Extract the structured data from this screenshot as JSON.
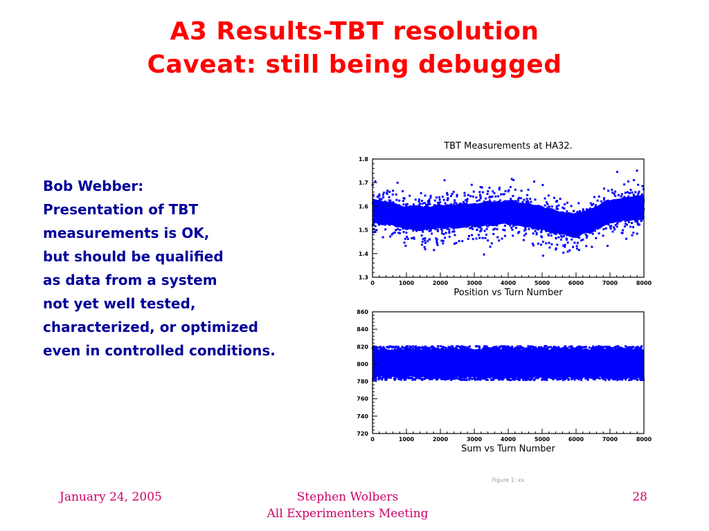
{
  "slide": {
    "title_line1": "A3 Results-TBT resolution",
    "title_line2": "Caveat: still being debugged",
    "body_lines": [
      "Bob Webber:",
      "Presentation of TBT",
      "measurements is OK,",
      "but should be qualified",
      "as data from a system",
      "not yet well tested,",
      "characterized, or optimized",
      "even in controlled conditions."
    ],
    "footer_date": "January 24, 2005",
    "footer_author": "Stephen Wolbers",
    "footer_meeting": "All Experimenters Meeting",
    "page_number": "28"
  },
  "figure": {
    "title": "TBT Measurements at HA32.",
    "caption": "Figure 1: xx"
  },
  "colors": {
    "title": "#ff0000",
    "body": "#000099",
    "footer": "#cc0066",
    "data": "#0000ff"
  },
  "chart_data": [
    {
      "type": "scatter",
      "title": "TBT Measurements at HA32.",
      "xlabel": "Position vs Turn Number",
      "ylabel": "",
      "xlim": [
        0,
        8000
      ],
      "ylim": [
        1.3,
        1.8
      ],
      "x_ticks": [
        0,
        1000,
        2000,
        3000,
        4000,
        5000,
        6000,
        7000,
        8000
      ],
      "x_tick_labels": [
        "0",
        "1000",
        "2000",
        "3000",
        "4000",
        "5000",
        "6000",
        "7000",
        "8000"
      ],
      "y_ticks": [
        1.3,
        1.4,
        1.5,
        1.6,
        1.7,
        1.8
      ],
      "y_tick_labels": [
        "1.3",
        "1.4",
        "1.5",
        "1.6",
        "1.7",
        "1.8"
      ],
      "band_center": [
        [
          0,
          1.58
        ],
        [
          500,
          1.57
        ],
        [
          1000,
          1.55
        ],
        [
          1500,
          1.55
        ],
        [
          2000,
          1.555
        ],
        [
          2500,
          1.56
        ],
        [
          3000,
          1.565
        ],
        [
          3500,
          1.57
        ],
        [
          4000,
          1.575
        ],
        [
          4500,
          1.565
        ],
        [
          5000,
          1.55
        ],
        [
          5500,
          1.53
        ],
        [
          6000,
          1.52
        ],
        [
          6500,
          1.545
        ],
        [
          7000,
          1.58
        ],
        [
          7500,
          1.59
        ],
        [
          8000,
          1.595
        ]
      ],
      "band_core_halfwidth": 0.05,
      "band_outlier_halfwidth": 0.12,
      "grid": false
    },
    {
      "type": "scatter",
      "title": "",
      "xlabel": "Sum vs Turn Number",
      "ylabel": "",
      "xlim": [
        0,
        8000
      ],
      "ylim": [
        720,
        860
      ],
      "x_ticks": [
        0,
        1000,
        2000,
        3000,
        4000,
        5000,
        6000,
        7000,
        8000
      ],
      "x_tick_labels": [
        "0",
        "1000",
        "2000",
        "3000",
        "4000",
        "5000",
        "6000",
        "7000",
        "8000"
      ],
      "y_ticks": [
        720,
        740,
        760,
        780,
        800,
        820,
        840,
        860
      ],
      "y_tick_labels": [
        "720",
        "740",
        "760",
        "780",
        "800",
        "820",
        "840",
        "860"
      ],
      "band_center": [
        [
          0,
          801
        ],
        [
          8000,
          801
        ]
      ],
      "band_core_halfwidth": 17,
      "band_outlier_halfwidth": 20,
      "grid": false
    }
  ]
}
